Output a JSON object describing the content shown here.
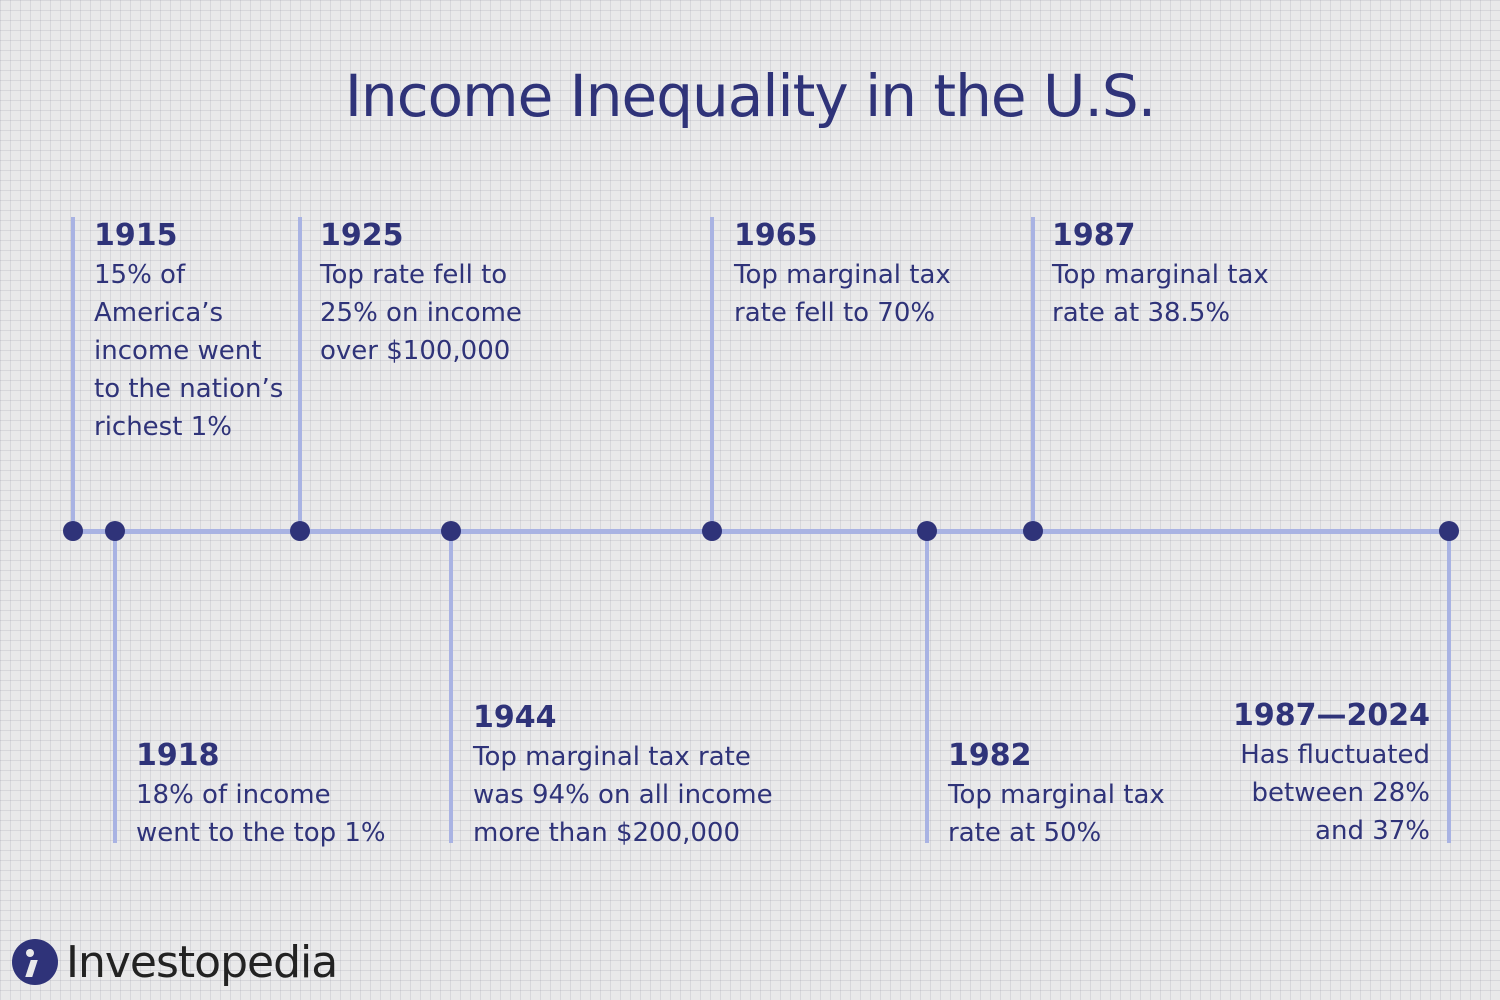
{
  "title": "Income Inequality in the U.S.",
  "events": [
    {
      "year": "1915",
      "desc": "15% of\nAmerica’s\nincome went\nto the nation’s\nrichest 1%"
    },
    {
      "year": "1918",
      "desc": "18% of income\nwent to the top 1%"
    },
    {
      "year": "1925",
      "desc": "Top rate fell to\n25% on income\nover $100,000"
    },
    {
      "year": "1944",
      "desc": "Top marginal tax rate\nwas 94% on all income\nmore than $200,000"
    },
    {
      "year": "1965",
      "desc": "Top marginal tax\nrate fell to 70%"
    },
    {
      "year": "1982",
      "desc": "Top marginal tax\nrate at 50%"
    },
    {
      "year": "1987",
      "desc": "Top marginal tax\nrate at 38.5%"
    },
    {
      "year": "1987—2024",
      "desc": "Has fluctuated\nbetween 28%\nand 37%"
    }
  ],
  "brand": "Investopedia",
  "colors": {
    "primary": "#2f3379",
    "line": "#a9b3e3",
    "background": "#e9e9ea"
  }
}
